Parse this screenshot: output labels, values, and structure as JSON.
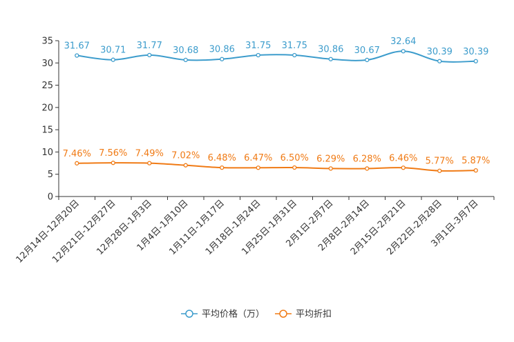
{
  "chart_data": {
    "type": "line",
    "categories": [
      "12月14日-12月20日",
      "12月21日-12月27日",
      "12月28日-1月3日",
      "1月4日-1月10日",
      "1月11日-1月17日",
      "1月18日-1月24日",
      "1月25日-1月31日",
      "2月1日-2月7日",
      "2月8日-2月14日",
      "2月15日-2月21日",
      "2月22日-2月28日",
      "3月1日-3月7日"
    ],
    "series": [
      {
        "name": "平均价格（万）",
        "color": "#3c9ccc",
        "values": [
          31.67,
          30.71,
          31.77,
          30.68,
          30.86,
          31.75,
          31.75,
          30.86,
          30.67,
          32.64,
          30.39,
          30.39
        ],
        "labels": [
          "31.67",
          "30.71",
          "31.77",
          "30.68",
          "30.86",
          "31.75",
          "31.75",
          "30.86",
          "30.67",
          "32.64",
          "30.39",
          "30.39"
        ]
      },
      {
        "name": "平均折扣",
        "color": "#f07a14",
        "values": [
          7.46,
          7.56,
          7.49,
          7.02,
          6.48,
          6.47,
          6.5,
          6.29,
          6.28,
          6.46,
          5.77,
          5.87
        ],
        "labels": [
          "7.46%",
          "7.56%",
          "7.49%",
          "7.02%",
          "6.48%",
          "6.47%",
          "6.50%",
          "6.29%",
          "6.28%",
          "6.46%",
          "5.77%",
          "5.87%"
        ]
      }
    ],
    "y_ticks": [
      "0",
      "5",
      "10",
      "15",
      "20",
      "25",
      "30",
      "35"
    ],
    "ylim": [
      0,
      35
    ],
    "title": "",
    "xlabel": "",
    "ylabel": "",
    "legend_position": "bottom-center"
  }
}
